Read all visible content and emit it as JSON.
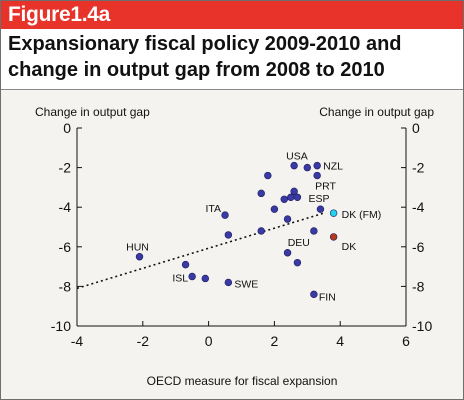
{
  "figure": {
    "label": "Figure1.4a",
    "title": "Expansionary fiscal policy 2009-2010 and change in output gap from 2008 to 2010"
  },
  "colors": {
    "header_red": "#e7332a",
    "point_blue": "#3a3aa6",
    "point_cyan": "#22d3ee",
    "point_red": "#b33a1e"
  },
  "chart_data": {
    "type": "scatter",
    "title": "Expansionary fiscal policy 2009-2010 and change in output gap from 2008 to 2010",
    "xlabel": "OECD measure for fiscal expansion",
    "ylabel": "Change in output gap",
    "ylabel_right": "Change in output gap",
    "xlim": [
      -4,
      6
    ],
    "ylim": [
      -10,
      0
    ],
    "xticks": [
      -4,
      -2,
      0,
      2,
      4,
      6
    ],
    "yticks": [
      0,
      -2,
      -4,
      -6,
      -8,
      -10
    ],
    "grid": false,
    "points": [
      {
        "x": 2.6,
        "y": -1.9,
        "label": "USA",
        "color": "#3a3aa6"
      },
      {
        "x": 3.0,
        "y": -2.0,
        "label": "",
        "color": "#3a3aa6"
      },
      {
        "x": 3.3,
        "y": -1.9,
        "label": "NZL",
        "color": "#3a3aa6"
      },
      {
        "x": 3.3,
        "y": -2.4,
        "label": "PRT",
        "color": "#3a3aa6"
      },
      {
        "x": 1.8,
        "y": -2.4,
        "label": "",
        "color": "#3a3aa6"
      },
      {
        "x": 1.6,
        "y": -3.3,
        "label": "",
        "color": "#3a3aa6"
      },
      {
        "x": 2.3,
        "y": -3.6,
        "label": "",
        "color": "#3a3aa6"
      },
      {
        "x": 2.5,
        "y": -3.5,
        "label": "",
        "color": "#3a3aa6"
      },
      {
        "x": 2.6,
        "y": -3.2,
        "label": "",
        "color": "#3a3aa6"
      },
      {
        "x": 2.7,
        "y": -3.5,
        "label": "",
        "color": "#3a3aa6"
      },
      {
        "x": 2.0,
        "y": -4.1,
        "label": "",
        "color": "#3a3aa6"
      },
      {
        "x": 3.4,
        "y": -4.1,
        "label": "ESP",
        "color": "#3a3aa6"
      },
      {
        "x": 0.5,
        "y": -4.4,
        "label": "ITA",
        "color": "#3a3aa6"
      },
      {
        "x": 2.4,
        "y": -4.6,
        "label": "",
        "color": "#3a3aa6"
      },
      {
        "x": 3.2,
        "y": -5.2,
        "label": "DEU",
        "color": "#3a3aa6"
      },
      {
        "x": 1.6,
        "y": -5.2,
        "label": "",
        "color": "#3a3aa6"
      },
      {
        "x": 0.6,
        "y": -5.4,
        "label": "",
        "color": "#3a3aa6"
      },
      {
        "x": 2.4,
        "y": -6.3,
        "label": "",
        "color": "#3a3aa6"
      },
      {
        "x": 2.7,
        "y": -6.8,
        "label": "",
        "color": "#3a3aa6"
      },
      {
        "x": -2.1,
        "y": -6.5,
        "label": "HUN",
        "color": "#3a3aa6"
      },
      {
        "x": -0.7,
        "y": -6.9,
        "label": "",
        "color": "#3a3aa6"
      },
      {
        "x": -0.5,
        "y": -7.5,
        "label": "ISL",
        "color": "#3a3aa6"
      },
      {
        "x": -0.1,
        "y": -7.6,
        "label": "",
        "color": "#3a3aa6"
      },
      {
        "x": 0.6,
        "y": -7.8,
        "label": "SWE",
        "color": "#3a3aa6"
      },
      {
        "x": 3.2,
        "y": -8.4,
        "label": "FIN",
        "color": "#3a3aa6"
      },
      {
        "x": 3.8,
        "y": -4.3,
        "label": "DK (FM)",
        "color": "#22d3ee"
      },
      {
        "x": 3.8,
        "y": -5.5,
        "label": "DK",
        "color": "#b33a1e"
      }
    ],
    "trendline": {
      "style": "dotted",
      "from": [
        -4,
        -8.1
      ],
      "to": [
        3.5,
        -4.3
      ]
    }
  }
}
